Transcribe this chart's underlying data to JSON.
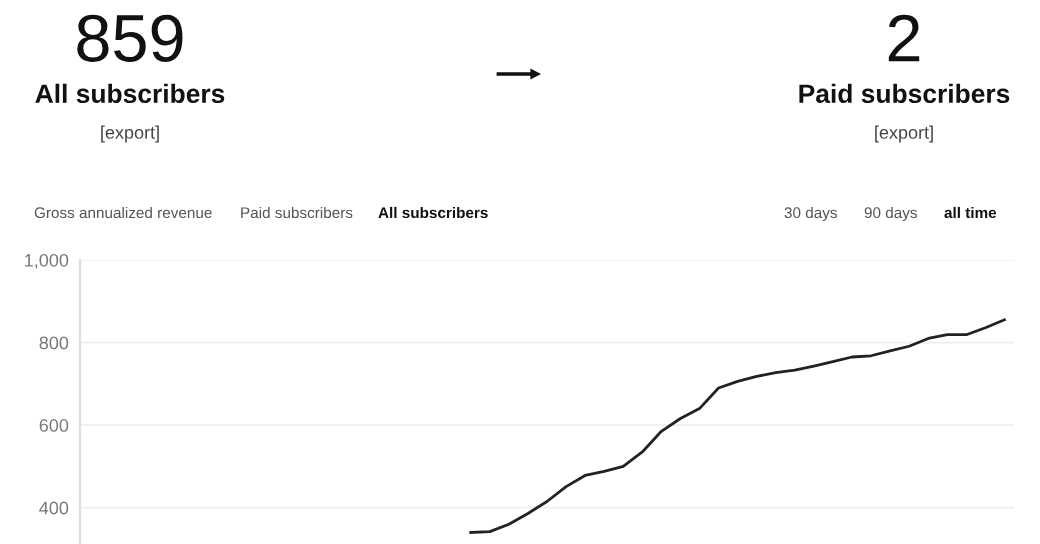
{
  "chart_data": {
    "type": "line",
    "categories": [
      null,
      null,
      null,
      null,
      null,
      null,
      null,
      null,
      null,
      null,
      null,
      null,
      null,
      null,
      null,
      null,
      null,
      null,
      null,
      null,
      null,
      null,
      null,
      null,
      null,
      null,
      null,
      null,
      null,
      null,
      null,
      null,
      null,
      null,
      null,
      null,
      null,
      null,
      null,
      null,
      null,
      null,
      null,
      null,
      null,
      null,
      null,
      null,
      null
    ],
    "series": [
      {
        "color": "#222222",
        "values": [
          null,
          null,
          null,
          null,
          null,
          null,
          null,
          null,
          null,
          null,
          null,
          null,
          null,
          null,
          null,
          null,
          null,
          null,
          null,
          null,
          340,
          342,
          360,
          386,
          415,
          451,
          478,
          488,
          500,
          535,
          585,
          616,
          640,
          690,
          706,
          718,
          727,
          733,
          743,
          754,
          765,
          768,
          780,
          791,
          810,
          819,
          819,
          836,
          855
        ]
      }
    ],
    "ylim": [
      312,
      1000
    ],
    "yticks": [
      400,
      600,
      800,
      {
        "value": 1000,
        "label": "1,000"
      }
    ],
    "grid": "y",
    "marker": "none",
    "line_style": "solid",
    "tick_labels": "y",
    "annotations": [
      "859",
      "All subscribers",
      "[export]",
      "2",
      "Paid subscribers",
      "[export]",
      "Gross annualized revenue",
      "Paid subscribers",
      "All subscribers",
      "30 days",
      "90 days",
      "all time"
    ]
  }
}
